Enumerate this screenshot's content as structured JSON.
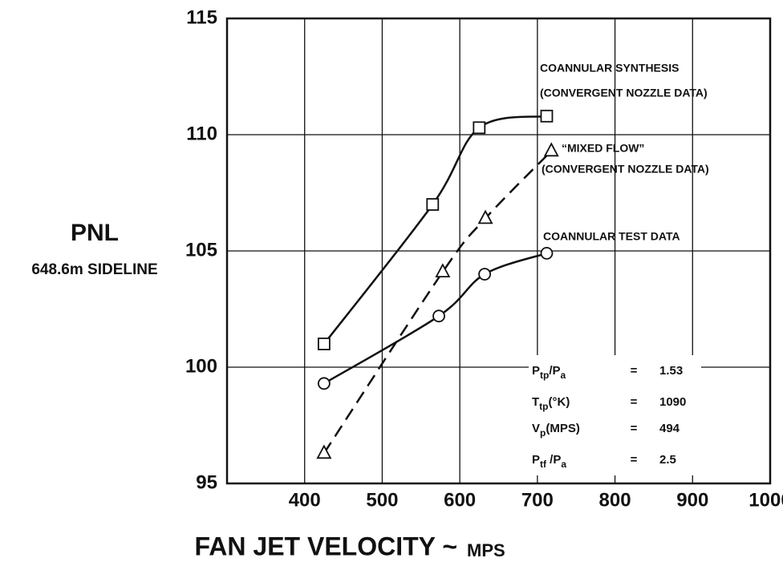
{
  "chart_data": {
    "type": "line",
    "ylabel": "PNL",
    "ylabel_sub": "648.6m SIDELINE",
    "xlabel": "FAN JET VELOCITY ~",
    "xlabel_unit": "MPS",
    "xlim": [
      300,
      1000
    ],
    "xticks": [
      400,
      500,
      600,
      700,
      800,
      900,
      1000
    ],
    "ylim": [
      95,
      115
    ],
    "yticks": [
      95,
      100,
      105,
      110,
      115
    ],
    "grid": true,
    "series": [
      {
        "name": "COANNULAR SYNTHESIS",
        "note": "(CONVERGENT NOZZLE DATA)",
        "marker": "square",
        "dashed": false,
        "color": "#111111",
        "x": [
          425,
          565,
          625,
          712
        ],
        "values": [
          101,
          107,
          110.3,
          110.8
        ]
      },
      {
        "name": "“MIXED FLOW”",
        "note": "(CONVERGENT NOZZLE DATA)",
        "marker": "triangle",
        "dashed": true,
        "color": "#111111",
        "x": [
          425,
          578,
          633,
          718
        ],
        "values": [
          96.3,
          104.1,
          106.4,
          109.3
        ]
      },
      {
        "name": "COANNULAR TEST DATA",
        "marker": "circle",
        "dashed": false,
        "color": "#111111",
        "x": [
          425,
          573,
          632,
          712
        ],
        "values": [
          99.3,
          102.2,
          104,
          104.9
        ]
      }
    ],
    "params_sep": "=",
    "params": [
      {
        "parts": [
          "P",
          "tp",
          "/P",
          "a"
        ],
        "value": "1.53"
      },
      {
        "parts": [
          "T",
          "tp",
          "(°K)"
        ],
        "value": "1090"
      },
      {
        "parts": [
          "V",
          "p",
          "(MPS)"
        ],
        "value": "494"
      },
      {
        "parts": [
          "P",
          "tf",
          " /P",
          "a"
        ],
        "value": "2.5"
      }
    ]
  }
}
